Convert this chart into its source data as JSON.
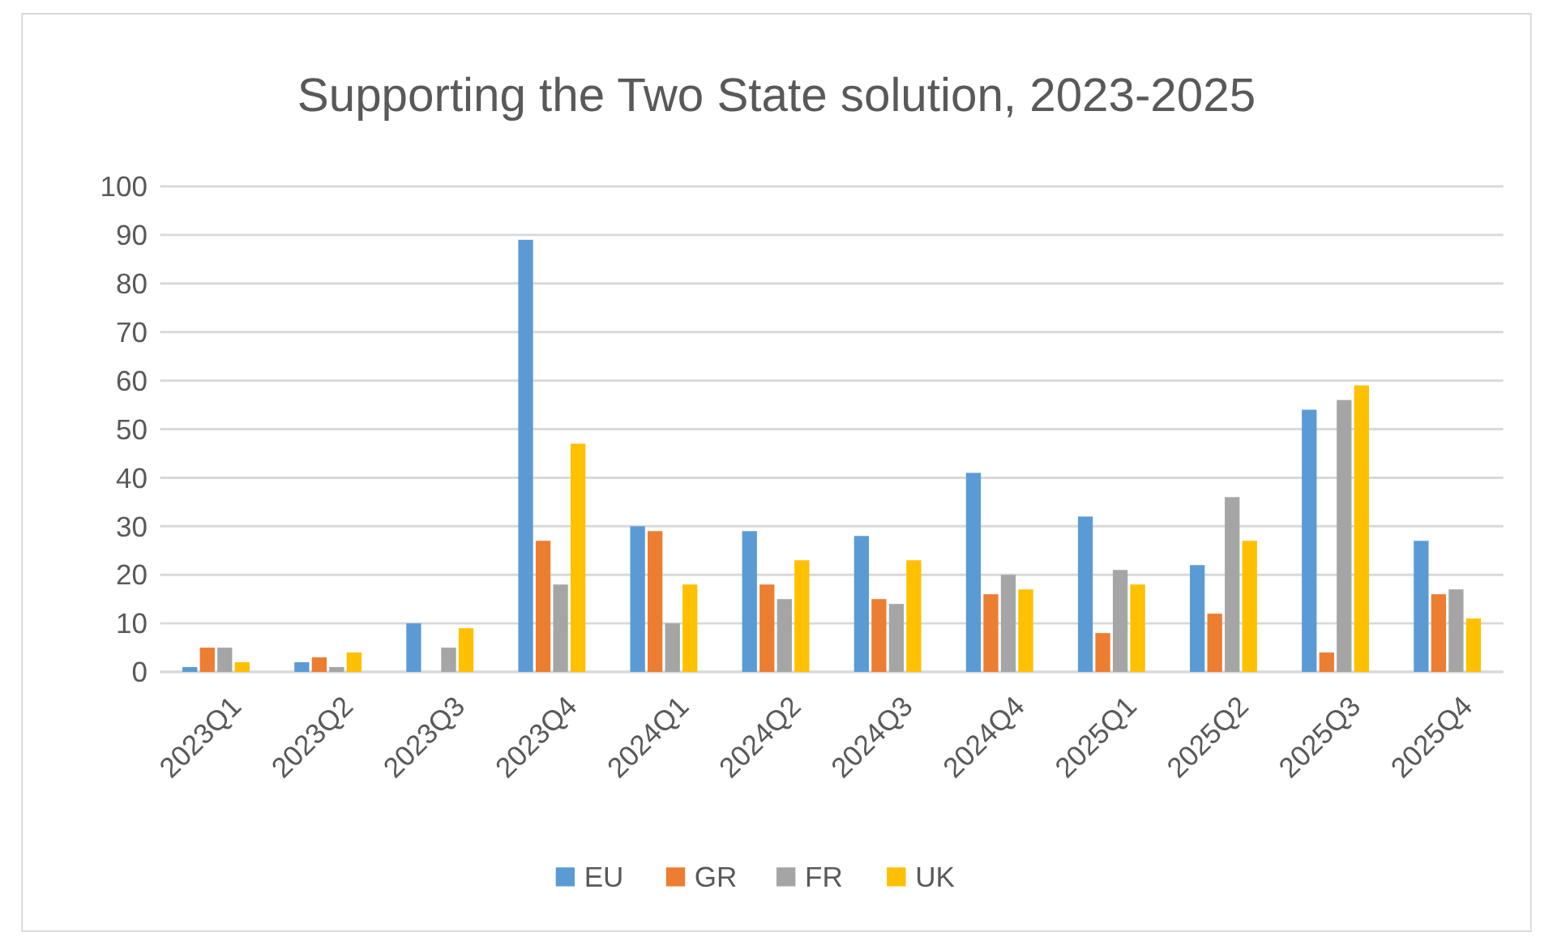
{
  "chart_data": {
    "type": "bar",
    "title": "Supporting the Two State solution, 2023-2025",
    "categories": [
      "2023Q1",
      "2023Q2",
      "2023Q3",
      "2023Q4",
      "2024Q1",
      "2024Q2",
      "2024Q3",
      "2024Q4",
      "2025Q1",
      "2025Q2",
      "2025Q3",
      "2025Q4"
    ],
    "series": [
      {
        "name": "EU",
        "color": "#5b9bd5",
        "values": [
          1,
          2,
          10,
          89,
          30,
          29,
          28,
          41,
          32,
          22,
          54,
          27
        ]
      },
      {
        "name": "GR",
        "color": "#ed7d31",
        "values": [
          5,
          3,
          0,
          27,
          29,
          18,
          15,
          16,
          8,
          12,
          4,
          16
        ]
      },
      {
        "name": "FR",
        "color": "#a5a5a5",
        "values": [
          5,
          1,
          5,
          18,
          10,
          15,
          14,
          20,
          21,
          36,
          56,
          17
        ]
      },
      {
        "name": "UK",
        "color": "#ffc000",
        "values": [
          2,
          4,
          9,
          47,
          18,
          23,
          23,
          17,
          18,
          27,
          59,
          11
        ]
      }
    ],
    "ylim": [
      0,
      100
    ],
    "yticks": [
      0,
      10,
      20,
      30,
      40,
      50,
      60,
      70,
      80,
      90,
      100
    ],
    "grid": "y",
    "legend": "bottom"
  }
}
